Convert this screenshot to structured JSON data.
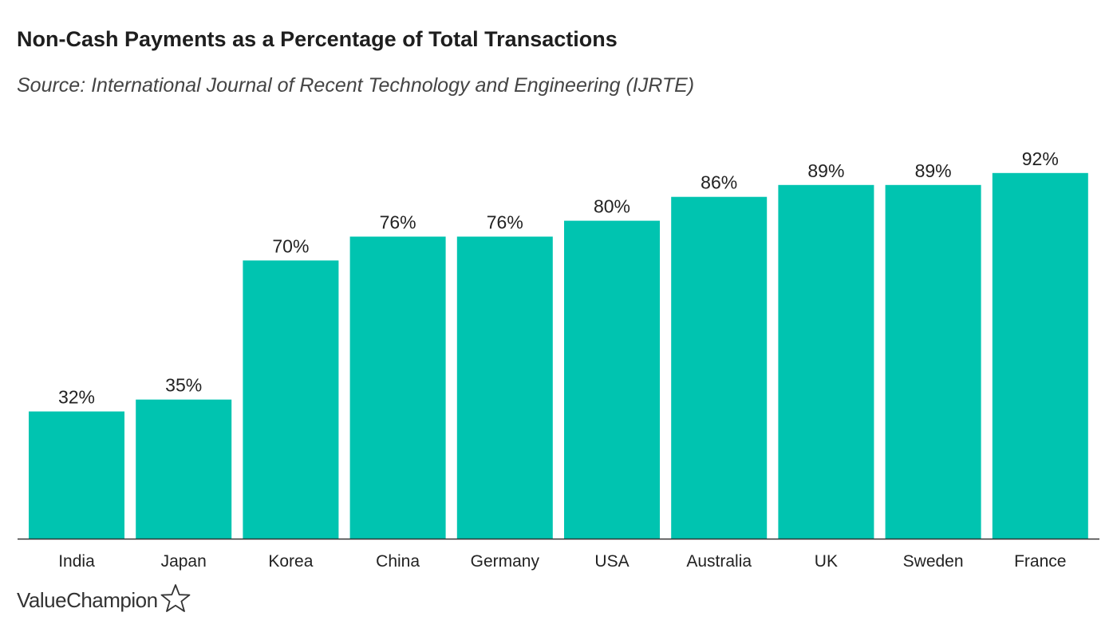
{
  "header": {
    "title": "Non-Cash Payments as a Percentage of Total Transactions",
    "subtitle": "Source: International Journal of Recent Technology and Engineering (IJRTE)"
  },
  "brand": {
    "name": "ValueChampion",
    "icon": "star-outline-icon"
  },
  "colors": {
    "bar": "#00c4b0",
    "axis": "#333333",
    "text": "#222222"
  },
  "chart_data": {
    "type": "bar",
    "title": "Non-Cash Payments as a Percentage of Total Transactions",
    "subtitle": "Source: International Journal of Recent Technology and Engineering (IJRTE)",
    "categories": [
      "India",
      "Japan",
      "Korea",
      "China",
      "Germany",
      "USA",
      "Australia",
      "UK",
      "Sweden",
      "France"
    ],
    "values": [
      32,
      35,
      70,
      76,
      76,
      80,
      86,
      89,
      89,
      92
    ],
    "value_labels": [
      "32%",
      "35%",
      "70%",
      "76%",
      "76%",
      "80%",
      "86%",
      "89%",
      "89%",
      "92%"
    ],
    "unit": "%",
    "xlabel": "",
    "ylabel": "",
    "ylim": [
      0,
      100
    ],
    "grid": false,
    "legend": "none"
  }
}
